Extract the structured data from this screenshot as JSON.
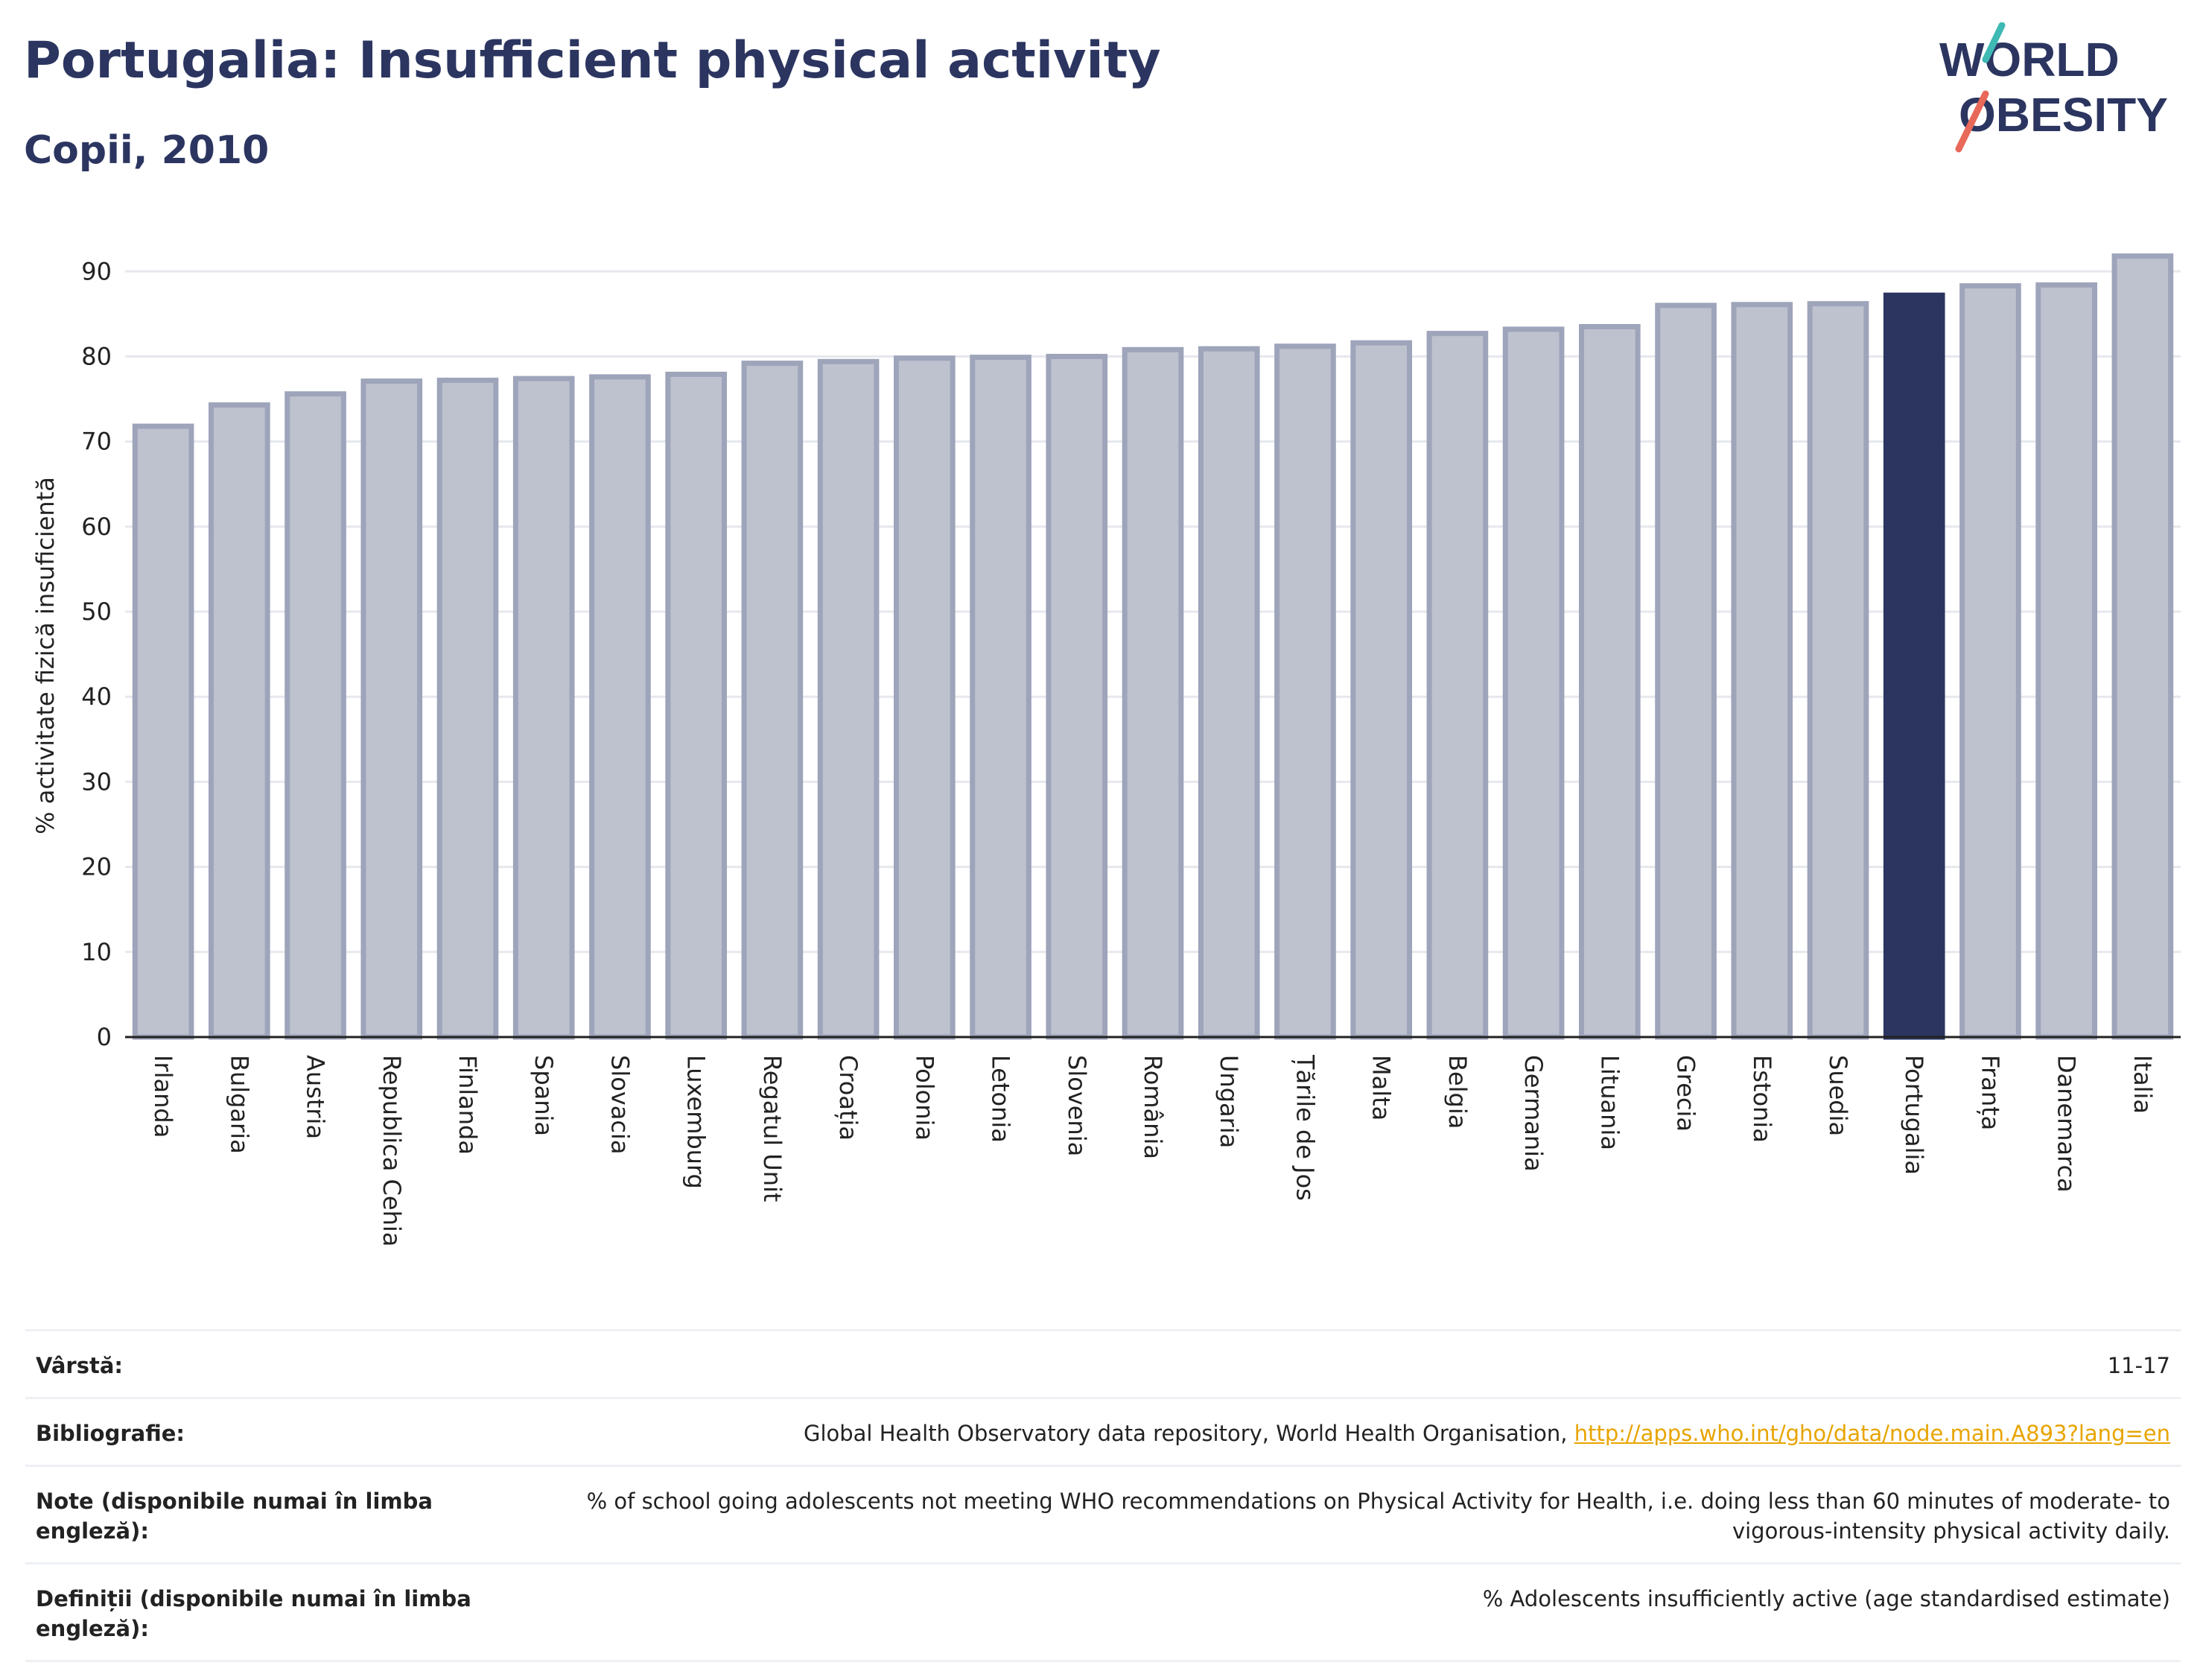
{
  "header": {
    "title": "Portugalia: Insufficient physical activity",
    "subtitle": "Copii, 2010"
  },
  "logo": {
    "line1": "WORLD",
    "line2": "OBESITY"
  },
  "chart_data": {
    "type": "bar",
    "ylabel": "% activitate fizică insuficientă",
    "ylim": [
      0,
      93
    ],
    "yticks": [
      0,
      10,
      20,
      30,
      40,
      50,
      60,
      70,
      80,
      90
    ],
    "grid": true,
    "highlight": "Portugalia",
    "colors": {
      "bar": "#bec2cf",
      "bar_border": "#9ea4ba",
      "highlight": "#2b3560",
      "grid": "#e6e8ee",
      "axis": "#222222"
    },
    "categories": [
      "Irlanda",
      "Bulgaria",
      "Austria",
      "Republica Cehia",
      "Finlanda",
      "Spania",
      "Slovacia",
      "Luxemburg",
      "Regatul Unit",
      "Croația",
      "Polonia",
      "Letonia",
      "Slovenia",
      "România",
      "Ungaria",
      "Țările de Jos",
      "Malta",
      "Belgia",
      "Germania",
      "Lituania",
      "Grecia",
      "Estonia",
      "Suedia",
      "Portugalia",
      "Franța",
      "Danemarca",
      "Italia"
    ],
    "values": [
      71.8,
      74.3,
      75.6,
      77.1,
      77.2,
      77.4,
      77.6,
      77.9,
      79.2,
      79.4,
      79.8,
      79.9,
      80.0,
      80.8,
      80.9,
      81.2,
      81.6,
      82.7,
      83.2,
      83.5,
      86.0,
      86.1,
      86.2,
      87.2,
      88.3,
      88.4,
      91.8
    ]
  },
  "meta": {
    "age_label": "Vârstă:",
    "age_value": "11-17",
    "bib_label": "Bibliografie:",
    "bib_text": "Global Health Observatory data repository, World Health Organisation, ",
    "bib_link": "http://apps.who.int/gho/data/node.main.A893?lang=en",
    "notes_label": "Note (disponibile numai în limba engleză):",
    "notes_value": "% of school going adolescents not meeting WHO recommendations on Physical Activity for Health, i.e. doing less than 60 minutes of moderate- to vigorous-intensity physical activity daily.",
    "defs_label": "Definiții (disponibile numai în limba engleză):",
    "defs_value": "% Adolescents insufficiently active (age standardised estimate)"
  }
}
